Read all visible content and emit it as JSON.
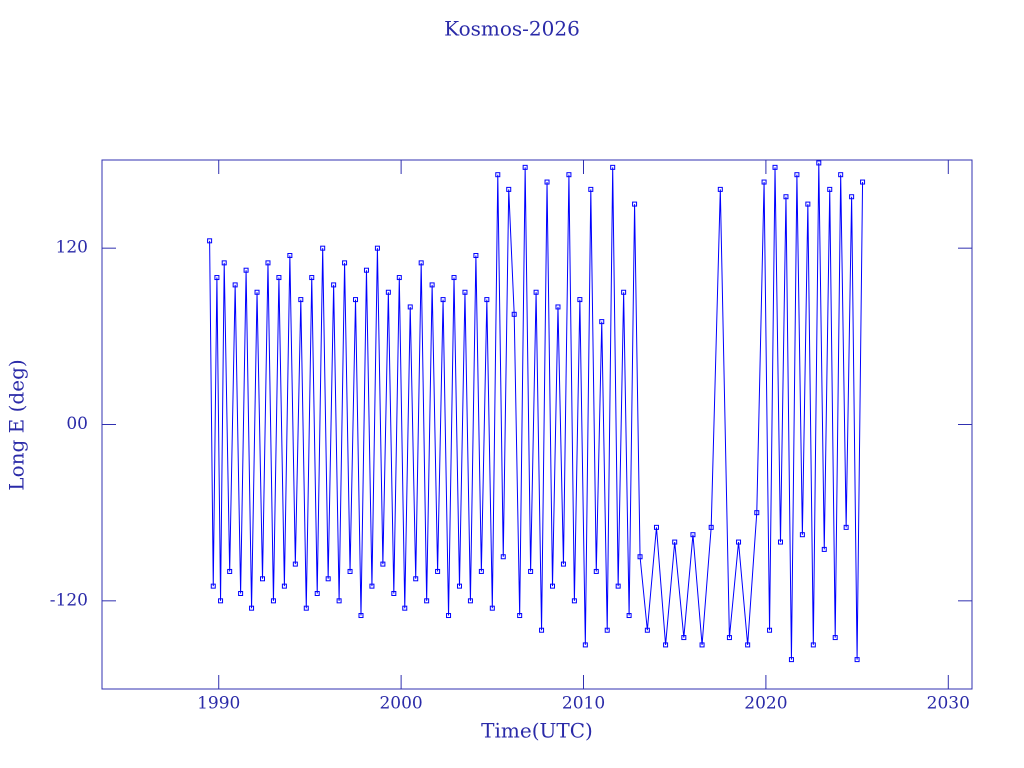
{
  "chart_data": {
    "type": "line",
    "title": "Kosmos-2026",
    "x_label": "Time(UTC)",
    "y_label": "Long E (deg)",
    "color": "#0000ff",
    "xlim": [
      1983.6,
      2031.3
    ],
    "ylim": [
      -180,
      180
    ],
    "xticks": [
      1990,
      2000,
      2010,
      2020,
      2030
    ],
    "yticks": [
      -120,
      {
        "value": 0,
        "label": "00"
      },
      120
    ],
    "x": [
      1989.5,
      1989.7,
      1989.9,
      1990.1,
      1990.3,
      1990.6,
      1990.9,
      1991.2,
      1991.5,
      1991.8,
      1992.1,
      1992.4,
      1992.7,
      1993.0,
      1993.3,
      1993.6,
      1993.9,
      1994.2,
      1994.5,
      1994.8,
      1995.1,
      1995.4,
      1995.7,
      1996.0,
      1996.3,
      1996.6,
      1996.9,
      1997.2,
      1997.5,
      1997.8,
      1998.1,
      1998.4,
      1998.7,
      1999.0,
      1999.3,
      1999.6,
      1999.9,
      2000.2,
      2000.5,
      2000.8,
      2001.1,
      2001.4,
      2001.7,
      2002.0,
      2002.3,
      2002.6,
      2002.9,
      2003.2,
      2003.5,
      2003.8,
      2004.1,
      2004.4,
      2004.7,
      2005.0,
      2005.3,
      2005.6,
      2005.9,
      2006.2,
      2006.5,
      2006.8,
      2007.1,
      2007.4,
      2007.7,
      2008.0,
      2008.3,
      2008.6,
      2008.9,
      2009.2,
      2009.5,
      2009.8,
      2010.1,
      2010.4,
      2010.7,
      2011.0,
      2011.3,
      2011.6,
      2011.9,
      2012.2,
      2012.5,
      2012.8,
      2013.1,
      2013.5,
      2014.0,
      2014.5,
      2015.0,
      2015.5,
      2016.0,
      2016.5,
      2017.0,
      2017.5,
      2018.0,
      2018.5,
      2019.0,
      2019.5,
      2019.9,
      2020.2,
      2020.5,
      2020.8,
      2021.1,
      2021.4,
      2021.7,
      2022.0,
      2022.3,
      2022.6,
      2022.9,
      2023.2,
      2023.5,
      2023.8,
      2024.1,
      2024.4,
      2024.7,
      2025.0,
      2025.3
    ],
    "values": [
      125,
      -110,
      100,
      -120,
      110,
      -100,
      95,
      -115,
      105,
      -125,
      90,
      -105,
      110,
      -120,
      100,
      -110,
      115,
      -95,
      85,
      -125,
      100,
      -115,
      120,
      -105,
      95,
      -120,
      110,
      -100,
      85,
      -130,
      105,
      -110,
      120,
      -95,
      90,
      -115,
      100,
      -125,
      80,
      -105,
      110,
      -120,
      95,
      -100,
      85,
      -130,
      100,
      -110,
      90,
      -120,
      115,
      -100,
      85,
      -125,
      170,
      -90,
      160,
      75,
      -130,
      175,
      -100,
      90,
      -140,
      165,
      -110,
      80,
      -95,
      170,
      -120,
      85,
      -150,
      160,
      -100,
      70,
      -140,
      175,
      -110,
      90,
      -130,
      150,
      -90,
      -140,
      -70,
      -150,
      -80,
      -145,
      -75,
      -150,
      -70,
      160,
      -145,
      -80,
      -150,
      -60,
      165,
      -140,
      175,
      -80,
      155,
      -160,
      170,
      -75,
      150,
      -150,
      178,
      -85,
      160,
      -145,
      170,
      -70,
      155,
      -160,
      165
    ]
  }
}
